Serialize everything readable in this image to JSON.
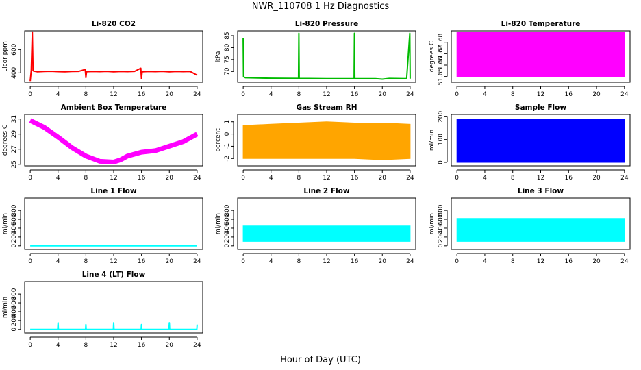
{
  "figure": {
    "title": "NWR_110708  1 Hz Diagnostics",
    "xlabel": "Hour of Day (UTC)"
  },
  "chart_data": [
    {
      "type": "line",
      "title": "Li-820 CO2",
      "ylabel": "Licor ppm",
      "color": "#ff0000",
      "xlim": [
        -0.8,
        24.8
      ],
      "ylim": [
        320,
        760
      ],
      "xticks": [
        0,
        4,
        8,
        12,
        16,
        20,
        24
      ],
      "yticks": [
        400,
        600
      ],
      "x": [
        0,
        0.15,
        0.3,
        0.4,
        0.5,
        1,
        2,
        3,
        4,
        5,
        6,
        7,
        7.9,
        8,
        8.1,
        9,
        10,
        11,
        12,
        13,
        14,
        15,
        15.9,
        16,
        16.1,
        17,
        18,
        19,
        20,
        21,
        22,
        23,
        24
      ],
      "y": [
        330,
        420,
        750,
        420,
        415,
        410,
        412,
        414,
        411,
        410,
        412,
        413,
        430,
        360,
        410,
        412,
        411,
        413,
        410,
        412,
        411,
        413,
        440,
        350,
        410,
        412,
        411,
        413,
        410,
        412,
        411,
        412,
        380
      ]
    },
    {
      "type": "line",
      "title": "Li-820 Pressure",
      "ylabel": "kPa",
      "color": "#00bb00",
      "xlim": [
        -0.8,
        24.8
      ],
      "ylim": [
        65.5,
        87
      ],
      "xticks": [
        0,
        4,
        8,
        12,
        16,
        20,
        24
      ],
      "yticks": [
        70,
        75,
        80,
        85
      ],
      "x": [
        0,
        0.05,
        0.3,
        4,
        7.95,
        8,
        8.05,
        12,
        15.95,
        16,
        16.05,
        19,
        20,
        21,
        23.5,
        23.95,
        24
      ],
      "y": [
        84,
        67.8,
        67.4,
        67.2,
        67.1,
        86,
        67.1,
        67.0,
        67.0,
        86,
        67.0,
        67.0,
        66.8,
        67.1,
        67.0,
        86,
        67.0
      ]
    },
    {
      "type": "area",
      "title": "Li-820 Temperature",
      "ylabel": "degrees C",
      "color": "#ff00ff",
      "xlim": [
        -0.8,
        24.8
      ],
      "ylim": [
        51.645,
        51.69
      ],
      "xticks": [
        0,
        4,
        8,
        12,
        16,
        20,
        24
      ],
      "yticks": [
        51.65,
        51.66,
        51.67,
        51.68
      ],
      "x": [
        0,
        24
      ],
      "y_low": [
        51.65,
        51.65
      ],
      "y_high": [
        51.689,
        51.689
      ]
    },
    {
      "type": "line",
      "title": "Ambient Box Temperature",
      "ylabel": "degrees C",
      "color": "#ff00ff",
      "xlim": [
        -0.8,
        24.8
      ],
      "ylim": [
        24.8,
        31.6
      ],
      "xticks": [
        0,
        4,
        8,
        12,
        16,
        20,
        24
      ],
      "yticks": [
        25,
        27,
        29,
        31
      ],
      "x": [
        0,
        2,
        4,
        6,
        8,
        10,
        12,
        13,
        14,
        16,
        18,
        20,
        22,
        24
      ],
      "y": [
        30.8,
        29.9,
        28.6,
        27.2,
        26.1,
        25.4,
        25.3,
        25.6,
        26.1,
        26.6,
        26.8,
        27.4,
        28.0,
        29.0
      ]
    },
    {
      "type": "area",
      "title": "Gas Stream RH",
      "ylabel": "percent",
      "color": "#ffa500",
      "xlim": [
        -0.8,
        24.8
      ],
      "ylim": [
        -2.6,
        1.6
      ],
      "xticks": [
        0,
        4,
        8,
        12,
        16,
        20,
        24
      ],
      "yticks": [
        -2,
        -1,
        0,
        1
      ],
      "x": [
        0,
        4,
        8,
        12,
        16,
        20,
        24
      ],
      "y_low": [
        -2.0,
        -2.0,
        -2.0,
        -2.0,
        -2.0,
        -2.1,
        -2.0
      ],
      "y_high": [
        0.7,
        0.8,
        0.9,
        1.0,
        0.9,
        0.9,
        0.8
      ]
    },
    {
      "type": "area",
      "title": "Sample Flow",
      "ylabel": "ml/min",
      "color": "#0000ff",
      "xlim": [
        -0.8,
        24.8
      ],
      "ylim": [
        -15,
        210
      ],
      "xticks": [
        0,
        4,
        8,
        12,
        16,
        20,
        24
      ],
      "yticks": [
        0,
        100,
        200
      ],
      "x": [
        0,
        24
      ],
      "y_low": [
        0,
        0
      ],
      "y_high": [
        190,
        190
      ]
    },
    {
      "type": "line",
      "title": "Line 1 Flow",
      "ylabel": "ml/min",
      "color": "#00ffff",
      "xlim": [
        -0.8,
        24.8
      ],
      "ylim": [
        -80,
        1080
      ],
      "xticks": [
        0,
        4,
        8,
        12,
        16,
        20,
        24
      ],
      "yticks": [
        0,
        200,
        400,
        600,
        800
      ],
      "x": [
        0,
        24
      ],
      "y": [
        0,
        0
      ]
    },
    {
      "type": "area",
      "title": "Line 2 Flow",
      "ylabel": "ml/min",
      "color": "#00ffff",
      "xlim": [
        -0.8,
        24.8
      ],
      "ylim": [
        -80,
        1080
      ],
      "xticks": [
        0,
        4,
        8,
        12,
        16,
        20,
        24
      ],
      "yticks": [
        0,
        200,
        400,
        600,
        800
      ],
      "x": [
        0,
        24
      ],
      "y_low": [
        100,
        100
      ],
      "y_high": [
        450,
        450
      ]
    },
    {
      "type": "area",
      "title": "Line 3 Flow",
      "ylabel": "ml/min",
      "color": "#00ffff",
      "xlim": [
        -0.8,
        24.8
      ],
      "ylim": [
        -80,
        1080
      ],
      "xticks": [
        0,
        4,
        8,
        12,
        16,
        20,
        24
      ],
      "yticks": [
        0,
        200,
        400,
        600,
        800
      ],
      "x": [
        0,
        24
      ],
      "y_low": [
        100,
        100
      ],
      "y_high": [
        620,
        620
      ]
    },
    {
      "type": "line",
      "title": "Line 4 (LT) Flow",
      "ylabel": "ml/min",
      "color": "#00ffff",
      "xlim": [
        -0.8,
        24.8
      ],
      "ylim": [
        -80,
        1080
      ],
      "xticks": [
        0,
        4,
        8,
        12,
        16,
        20,
        24
      ],
      "yticks": [
        0,
        200,
        400,
        600,
        800
      ],
      "x": [
        0,
        3.95,
        4,
        4.05,
        7.95,
        8,
        8.05,
        11.95,
        12,
        12.05,
        15.95,
        16,
        16.05,
        19.95,
        20,
        20.05,
        23.95,
        24
      ],
      "y": [
        0,
        0,
        150,
        0,
        0,
        110,
        0,
        0,
        150,
        0,
        0,
        110,
        0,
        0,
        150,
        0,
        0,
        110
      ]
    }
  ]
}
